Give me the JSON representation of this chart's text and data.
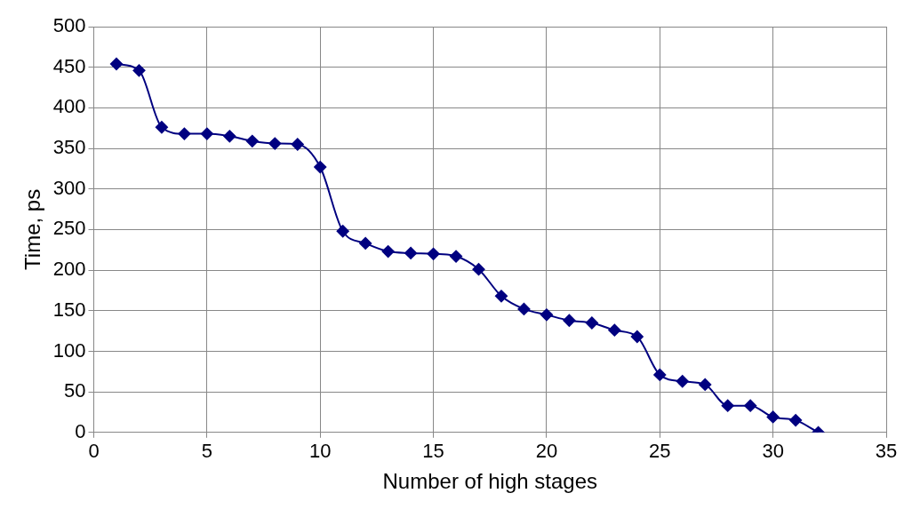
{
  "chart_data": {
    "type": "line",
    "xlabel": "Number of high stages",
    "ylabel": "Time, ps",
    "x": [
      1,
      2,
      3,
      4,
      5,
      6,
      7,
      8,
      9,
      10,
      11,
      12,
      13,
      14,
      15,
      16,
      17,
      18,
      19,
      20,
      21,
      22,
      23,
      24,
      25,
      26,
      27,
      28,
      29,
      30,
      31,
      32
    ],
    "series": [
      {
        "color": "#000080",
        "values": [
          454,
          446,
          376,
          368,
          368,
          365,
          359,
          356,
          355,
          327,
          248,
          233,
          223,
          221,
          220,
          217,
          201,
          168,
          152,
          145,
          138,
          135,
          126,
          118,
          71,
          63,
          59,
          33,
          33,
          19,
          15,
          0
        ]
      }
    ],
    "xlim": [
      0,
      35
    ],
    "xticks": [
      0,
      5,
      10,
      15,
      20,
      25,
      30,
      35
    ],
    "ylim": [
      0,
      500
    ],
    "yticks": [
      0,
      50,
      100,
      150,
      200,
      250,
      300,
      350,
      400,
      450,
      500
    ],
    "grid": true,
    "legend": false,
    "marker": "diamond",
    "line_style": "solid"
  }
}
